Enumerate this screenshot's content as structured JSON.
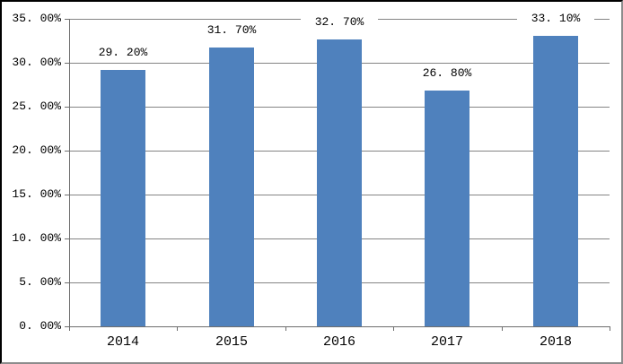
{
  "chart_data": {
    "type": "bar",
    "title": "",
    "xlabel": "",
    "ylabel": "",
    "categories": [
      "2014",
      "2015",
      "2016",
      "2017",
      "2018"
    ],
    "values": [
      29.2,
      31.7,
      32.7,
      26.8,
      33.1
    ],
    "value_labels": [
      "29. 20%",
      "31. 70%",
      "32. 70%",
      "26. 80%",
      "33. 10%"
    ],
    "ylim": [
      0,
      35
    ],
    "ytick_values": [
      0,
      5,
      10,
      15,
      20,
      25,
      30,
      35
    ],
    "ytick_labels": [
      "0. 00%",
      "5. 00%",
      "10. 00%",
      "15. 00%",
      "20. 00%",
      "25. 00%",
      "30. 00%",
      "35. 00%"
    ],
    "grid": true,
    "legend": false,
    "bar_color": "#4F81BD",
    "gridline_color": "#848484",
    "axis_color": "#6E6E6E",
    "text_color": "#000000",
    "background_color": "#FFFFFF"
  }
}
